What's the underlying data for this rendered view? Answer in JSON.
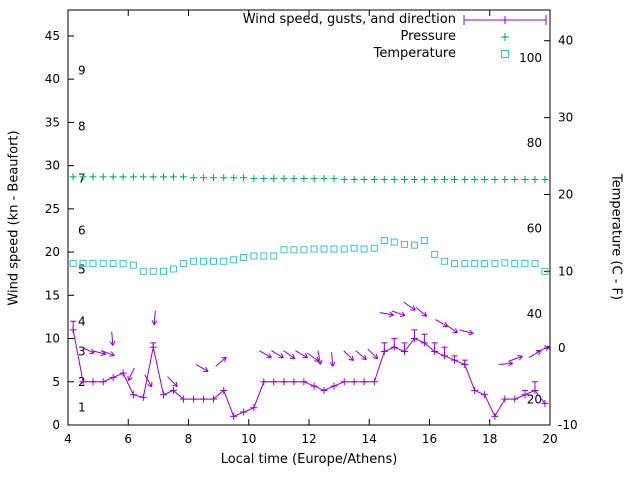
{
  "chart_data": {
    "type": "line",
    "title": "",
    "xlabel": "Local time (Europe/Athens)",
    "ylabel_left": "Wind speed (kn - Beaufort)",
    "ylabel_right": "Temperature (C - F)",
    "xlim": [
      4,
      20
    ],
    "ylim_left": [
      0,
      48
    ],
    "ylim_right": [
      -10,
      44
    ],
    "x_ticks": [
      4,
      6,
      8,
      10,
      12,
      14,
      16,
      18,
      20
    ],
    "y_left_ticks": [
      0,
      5,
      10,
      15,
      20,
      25,
      30,
      35,
      40,
      45
    ],
    "y_right_ticks": [
      -10,
      0,
      10,
      20,
      30,
      40
    ],
    "grid": false,
    "legend_position": "top-right-inside",
    "beaufort_scale_labels": [
      {
        "label": "1",
        "kn": 2
      },
      {
        "label": "2",
        "kn": 5
      },
      {
        "label": "3",
        "kn": 8.5
      },
      {
        "label": "4",
        "kn": 12
      },
      {
        "label": "5",
        "kn": 18
      },
      {
        "label": "6",
        "kn": 22.5
      },
      {
        "label": "7",
        "kn": 28.5
      },
      {
        "label": "8",
        "kn": 34.5
      },
      {
        "label": "9",
        "kn": 41
      }
    ],
    "fahrenheit_scale_labels": [
      {
        "label": "20",
        "f": 20
      },
      {
        "label": "40",
        "f": 40
      },
      {
        "label": "60",
        "f": 60
      },
      {
        "label": "80",
        "f": 80
      },
      {
        "label": "100",
        "f": 100
      }
    ],
    "legend": [
      {
        "label": "Wind speed, gusts, and direction",
        "color": "#9400d3",
        "sample": "errorbar-line"
      },
      {
        "label": "Pressure",
        "color": "#00a060",
        "sample": "plus"
      },
      {
        "label": "Temperature",
        "color": "#40c0d0",
        "sample": "square"
      }
    ],
    "colors": {
      "wind": "#9400d3",
      "pressure": "#00a060",
      "temperature": "#40c0d0",
      "axis": "#000000",
      "background": "#ffffff"
    },
    "series": {
      "time": [
        4.17,
        4.5,
        4.83,
        5.17,
        5.5,
        5.83,
        6.17,
        6.5,
        6.83,
        7.17,
        7.5,
        7.83,
        8.17,
        8.5,
        8.83,
        9.17,
        9.5,
        9.83,
        10.17,
        10.5,
        10.83,
        11.17,
        11.5,
        11.83,
        12.17,
        12.5,
        12.83,
        13.17,
        13.5,
        13.83,
        14.17,
        14.5,
        14.83,
        15.17,
        15.5,
        15.83,
        16.17,
        16.5,
        16.83,
        17.17,
        17.5,
        17.83,
        18.17,
        18.5,
        18.83,
        19.17,
        19.5,
        19.83
      ],
      "wind_speed_kn": [
        11,
        5,
        5,
        5,
        5.5,
        6,
        3.5,
        3.2,
        9,
        3.5,
        4,
        3,
        3,
        3,
        3,
        4,
        1,
        1.5,
        2,
        5,
        5,
        5,
        5,
        5,
        4.5,
        4,
        4.5,
        5,
        5,
        5,
        5,
        8.5,
        9,
        8.5,
        10,
        9.5,
        8.5,
        8,
        7.5,
        7,
        4,
        3.5,
        1,
        3,
        3,
        3.5,
        4,
        2.5
      ],
      "wind_gust_kn": [
        12,
        5,
        5,
        5,
        5.5,
        6,
        3.5,
        3.2,
        9.5,
        3.5,
        4,
        3,
        3,
        3,
        3,
        4,
        1,
        1.5,
        2,
        5,
        5,
        5,
        5,
        5,
        4.5,
        4,
        4.5,
        5,
        5,
        5,
        5,
        9.5,
        10,
        9.5,
        11,
        10.5,
        9.5,
        9,
        8,
        7.5,
        4,
        3.5,
        1,
        3,
        3,
        4,
        5,
        2.5
      ],
      "wind_arrows": [
        [
          4.45,
          9.0,
          -25
        ],
        [
          4.8,
          8.6,
          -15
        ],
        [
          5.1,
          8.6,
          -20
        ],
        [
          5.45,
          10.8,
          -85
        ],
        [
          6.2,
          6.6,
          -115
        ],
        [
          6.55,
          5.8,
          -60
        ],
        [
          6.9,
          13.2,
          -95
        ],
        [
          7.3,
          5.6,
          -45
        ],
        [
          8.25,
          7.0,
          -30
        ],
        [
          8.9,
          6.8,
          40
        ],
        [
          10.35,
          8.6,
          -30
        ],
        [
          10.75,
          8.6,
          -30
        ],
        [
          11.15,
          8.6,
          -35
        ],
        [
          11.55,
          8.6,
          -30
        ],
        [
          11.95,
          8.3,
          -35
        ],
        [
          12.3,
          8.6,
          -80
        ],
        [
          12.75,
          8.4,
          -85
        ],
        [
          13.15,
          8.6,
          -45
        ],
        [
          13.55,
          8.6,
          -40
        ],
        [
          13.95,
          8.8,
          -45
        ],
        [
          14.35,
          13.0,
          -10
        ],
        [
          14.75,
          13.2,
          -20
        ],
        [
          15.15,
          14.2,
          -35
        ],
        [
          15.55,
          13.6,
          -40
        ],
        [
          16.2,
          12.2,
          -30
        ],
        [
          16.55,
          11.6,
          -35
        ],
        [
          17.0,
          11.0,
          -15
        ],
        [
          18.3,
          7.0,
          5
        ],
        [
          18.65,
          7.4,
          20
        ],
        [
          19.3,
          7.8,
          30
        ],
        [
          19.55,
          8.4,
          25
        ]
      ],
      "pressure_kn_axis_units": [
        28.7,
        28.7,
        28.7,
        28.7,
        28.7,
        28.7,
        28.7,
        28.7,
        28.7,
        28.7,
        28.7,
        28.7,
        28.6,
        28.6,
        28.6,
        28.6,
        28.6,
        28.6,
        28.5,
        28.5,
        28.5,
        28.5,
        28.5,
        28.5,
        28.5,
        28.5,
        28.5,
        28.4,
        28.4,
        28.4,
        28.4,
        28.4,
        28.4,
        28.4,
        28.4,
        28.4,
        28.4,
        28.4,
        28.4,
        28.4,
        28.4,
        28.4,
        28.4,
        28.4,
        28.4,
        28.4,
        28.4,
        28.4
      ],
      "temperature_c": [
        11,
        11,
        11,
        11,
        11,
        11,
        10.8,
        10,
        10,
        10,
        10.3,
        11,
        11.3,
        11.3,
        11.3,
        11.3,
        11.5,
        11.8,
        12,
        12,
        12,
        12.8,
        12.8,
        12.8,
        12.9,
        12.9,
        12.9,
        12.9,
        13,
        12.9,
        13,
        14,
        13.8,
        13.5,
        13.4,
        14,
        12.2,
        11.3,
        11,
        11,
        11,
        11,
        11,
        11.1,
        11,
        11,
        11,
        10
      ]
    }
  }
}
